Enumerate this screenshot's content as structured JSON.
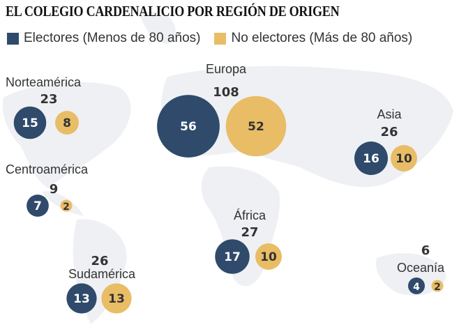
{
  "title": "EL COLEGIO CARDENALICIO POR REGIÓN DE ORIGEN",
  "colors": {
    "electores": "#2f4a6b",
    "no_electores": "#e8bd66",
    "map": "#eef0f3"
  },
  "chart_data": {
    "type": "bubble",
    "title": "EL COLEGIO CARDENALICIO POR REGIÓN DE ORIGEN",
    "legend": [
      {
        "name": "Electores (Menos de 80 años)",
        "color": "#2f4a6b"
      },
      {
        "name": "No electores (Más de 80 años)",
        "color": "#e8bd66"
      }
    ],
    "legend_position": "top-left",
    "regions": [
      {
        "name": "Norteamérica",
        "total": 23,
        "electores": 15,
        "no_electores": 8
      },
      {
        "name": "Europa",
        "total": 108,
        "electores": 56,
        "no_electores": 52
      },
      {
        "name": "Asia",
        "total": 26,
        "electores": 16,
        "no_electores": 10
      },
      {
        "name": "Centroamérica",
        "total": 9,
        "electores": 7,
        "no_electores": 2
      },
      {
        "name": "África",
        "total": 27,
        "electores": 17,
        "no_electores": 10
      },
      {
        "name": "Sudamérica",
        "total": 26,
        "electores": 13,
        "no_electores": 13
      },
      {
        "name": "Oceanía",
        "total": 6,
        "electores": 4,
        "no_electores": 2
      }
    ]
  }
}
